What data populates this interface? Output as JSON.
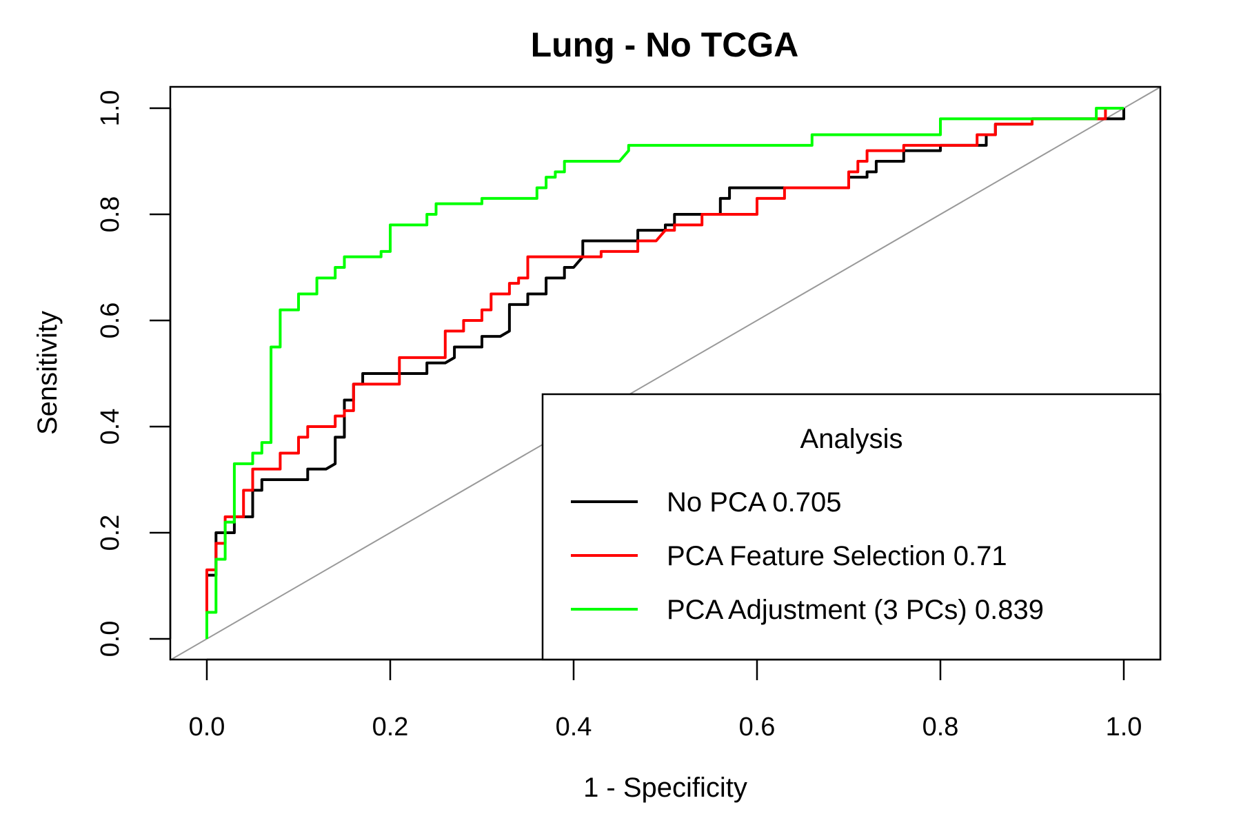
{
  "chart_data": {
    "type": "line",
    "title": "Lung - No TCGA",
    "xlabel": "1 - Specificity",
    "ylabel": "Sensitivity",
    "xlim": [
      0,
      1
    ],
    "ylim": [
      0,
      1
    ],
    "xticks": [
      "0.0",
      "0.2",
      "0.4",
      "0.6",
      "0.8",
      "1.0"
    ],
    "yticks": [
      "0.0",
      "0.2",
      "0.4",
      "0.6",
      "0.8",
      "1.0"
    ],
    "grid": false,
    "reference_line": {
      "color": "#999999",
      "from": [
        0,
        0
      ],
      "to": [
        1,
        1
      ]
    },
    "legend": {
      "title": "Analysis",
      "position": "bottom-right"
    },
    "series": [
      {
        "name": "No PCA 0.705",
        "color": "#000000",
        "points": [
          [
            0,
            0
          ],
          [
            0,
            0.12
          ],
          [
            0.01,
            0.12
          ],
          [
            0.01,
            0.2
          ],
          [
            0.03,
            0.2
          ],
          [
            0.03,
            0.23
          ],
          [
            0.05,
            0.23
          ],
          [
            0.05,
            0.28
          ],
          [
            0.06,
            0.28
          ],
          [
            0.06,
            0.3
          ],
          [
            0.11,
            0.3
          ],
          [
            0.11,
            0.32
          ],
          [
            0.13,
            0.32
          ],
          [
            0.14,
            0.33
          ],
          [
            0.14,
            0.38
          ],
          [
            0.15,
            0.38
          ],
          [
            0.15,
            0.45
          ],
          [
            0.16,
            0.45
          ],
          [
            0.16,
            0.48
          ],
          [
            0.17,
            0.48
          ],
          [
            0.17,
            0.5
          ],
          [
            0.24,
            0.5
          ],
          [
            0.24,
            0.52
          ],
          [
            0.26,
            0.52
          ],
          [
            0.27,
            0.53
          ],
          [
            0.27,
            0.55
          ],
          [
            0.3,
            0.55
          ],
          [
            0.3,
            0.57
          ],
          [
            0.32,
            0.57
          ],
          [
            0.33,
            0.58
          ],
          [
            0.33,
            0.63
          ],
          [
            0.35,
            0.63
          ],
          [
            0.35,
            0.65
          ],
          [
            0.37,
            0.65
          ],
          [
            0.37,
            0.68
          ],
          [
            0.39,
            0.68
          ],
          [
            0.39,
            0.7
          ],
          [
            0.4,
            0.7
          ],
          [
            0.41,
            0.72
          ],
          [
            0.41,
            0.75
          ],
          [
            0.47,
            0.75
          ],
          [
            0.47,
            0.77
          ],
          [
            0.5,
            0.77
          ],
          [
            0.5,
            0.78
          ],
          [
            0.51,
            0.78
          ],
          [
            0.51,
            0.8
          ],
          [
            0.56,
            0.8
          ],
          [
            0.56,
            0.83
          ],
          [
            0.57,
            0.83
          ],
          [
            0.57,
            0.85
          ],
          [
            0.7,
            0.85
          ],
          [
            0.7,
            0.87
          ],
          [
            0.72,
            0.87
          ],
          [
            0.72,
            0.88
          ],
          [
            0.73,
            0.88
          ],
          [
            0.73,
            0.9
          ],
          [
            0.76,
            0.9
          ],
          [
            0.76,
            0.92
          ],
          [
            0.8,
            0.92
          ],
          [
            0.8,
            0.93
          ],
          [
            0.85,
            0.93
          ],
          [
            0.85,
            0.95
          ],
          [
            0.86,
            0.95
          ],
          [
            0.86,
            0.97
          ],
          [
            0.9,
            0.97
          ],
          [
            0.9,
            0.98
          ],
          [
            1.0,
            0.98
          ],
          [
            1.0,
            1.0
          ]
        ]
      },
      {
        "name": "PCA Feature Selection 0.71",
        "color": "#ff0000",
        "points": [
          [
            0,
            0
          ],
          [
            0,
            0.13
          ],
          [
            0.01,
            0.13
          ],
          [
            0.01,
            0.18
          ],
          [
            0.02,
            0.18
          ],
          [
            0.02,
            0.23
          ],
          [
            0.04,
            0.23
          ],
          [
            0.04,
            0.28
          ],
          [
            0.05,
            0.28
          ],
          [
            0.05,
            0.32
          ],
          [
            0.08,
            0.32
          ],
          [
            0.08,
            0.35
          ],
          [
            0.1,
            0.35
          ],
          [
            0.1,
            0.38
          ],
          [
            0.11,
            0.38
          ],
          [
            0.11,
            0.4
          ],
          [
            0.14,
            0.4
          ],
          [
            0.14,
            0.42
          ],
          [
            0.15,
            0.42
          ],
          [
            0.15,
            0.43
          ],
          [
            0.16,
            0.43
          ],
          [
            0.16,
            0.48
          ],
          [
            0.21,
            0.48
          ],
          [
            0.21,
            0.53
          ],
          [
            0.26,
            0.53
          ],
          [
            0.26,
            0.58
          ],
          [
            0.28,
            0.58
          ],
          [
            0.28,
            0.6
          ],
          [
            0.3,
            0.6
          ],
          [
            0.3,
            0.62
          ],
          [
            0.31,
            0.62
          ],
          [
            0.31,
            0.65
          ],
          [
            0.33,
            0.65
          ],
          [
            0.33,
            0.67
          ],
          [
            0.34,
            0.67
          ],
          [
            0.34,
            0.68
          ],
          [
            0.35,
            0.68
          ],
          [
            0.35,
            0.72
          ],
          [
            0.43,
            0.72
          ],
          [
            0.43,
            0.73
          ],
          [
            0.47,
            0.73
          ],
          [
            0.47,
            0.75
          ],
          [
            0.49,
            0.75
          ],
          [
            0.5,
            0.77
          ],
          [
            0.51,
            0.77
          ],
          [
            0.51,
            0.78
          ],
          [
            0.54,
            0.78
          ],
          [
            0.54,
            0.8
          ],
          [
            0.6,
            0.8
          ],
          [
            0.6,
            0.83
          ],
          [
            0.63,
            0.83
          ],
          [
            0.63,
            0.85
          ],
          [
            0.7,
            0.85
          ],
          [
            0.7,
            0.88
          ],
          [
            0.71,
            0.88
          ],
          [
            0.71,
            0.9
          ],
          [
            0.72,
            0.9
          ],
          [
            0.72,
            0.92
          ],
          [
            0.76,
            0.92
          ],
          [
            0.76,
            0.93
          ],
          [
            0.84,
            0.93
          ],
          [
            0.84,
            0.95
          ],
          [
            0.86,
            0.95
          ],
          [
            0.86,
            0.97
          ],
          [
            0.9,
            0.97
          ],
          [
            0.9,
            0.98
          ],
          [
            0.98,
            0.98
          ],
          [
            0.98,
            1.0
          ],
          [
            1.0,
            1.0
          ]
        ]
      },
      {
        "name": "PCA Adjustment (3 PCs) 0.839",
        "color": "#00ff00",
        "points": [
          [
            0,
            0
          ],
          [
            0,
            0.05
          ],
          [
            0.01,
            0.05
          ],
          [
            0.01,
            0.15
          ],
          [
            0.02,
            0.15
          ],
          [
            0.02,
            0.22
          ],
          [
            0.03,
            0.22
          ],
          [
            0.03,
            0.33
          ],
          [
            0.05,
            0.33
          ],
          [
            0.05,
            0.35
          ],
          [
            0.06,
            0.35
          ],
          [
            0.06,
            0.37
          ],
          [
            0.07,
            0.37
          ],
          [
            0.07,
            0.55
          ],
          [
            0.08,
            0.55
          ],
          [
            0.08,
            0.62
          ],
          [
            0.1,
            0.62
          ],
          [
            0.1,
            0.65
          ],
          [
            0.12,
            0.65
          ],
          [
            0.12,
            0.68
          ],
          [
            0.14,
            0.68
          ],
          [
            0.14,
            0.7
          ],
          [
            0.15,
            0.7
          ],
          [
            0.15,
            0.72
          ],
          [
            0.19,
            0.72
          ],
          [
            0.19,
            0.73
          ],
          [
            0.2,
            0.73
          ],
          [
            0.2,
            0.78
          ],
          [
            0.24,
            0.78
          ],
          [
            0.24,
            0.8
          ],
          [
            0.25,
            0.8
          ],
          [
            0.25,
            0.82
          ],
          [
            0.3,
            0.82
          ],
          [
            0.3,
            0.83
          ],
          [
            0.36,
            0.83
          ],
          [
            0.36,
            0.85
          ],
          [
            0.37,
            0.85
          ],
          [
            0.37,
            0.87
          ],
          [
            0.38,
            0.87
          ],
          [
            0.38,
            0.88
          ],
          [
            0.39,
            0.88
          ],
          [
            0.39,
            0.9
          ],
          [
            0.45,
            0.9
          ],
          [
            0.46,
            0.92
          ],
          [
            0.46,
            0.93
          ],
          [
            0.66,
            0.93
          ],
          [
            0.66,
            0.95
          ],
          [
            0.8,
            0.95
          ],
          [
            0.8,
            0.98
          ],
          [
            0.97,
            0.98
          ],
          [
            0.97,
            1.0
          ],
          [
            1.0,
            1.0
          ]
        ]
      }
    ]
  }
}
